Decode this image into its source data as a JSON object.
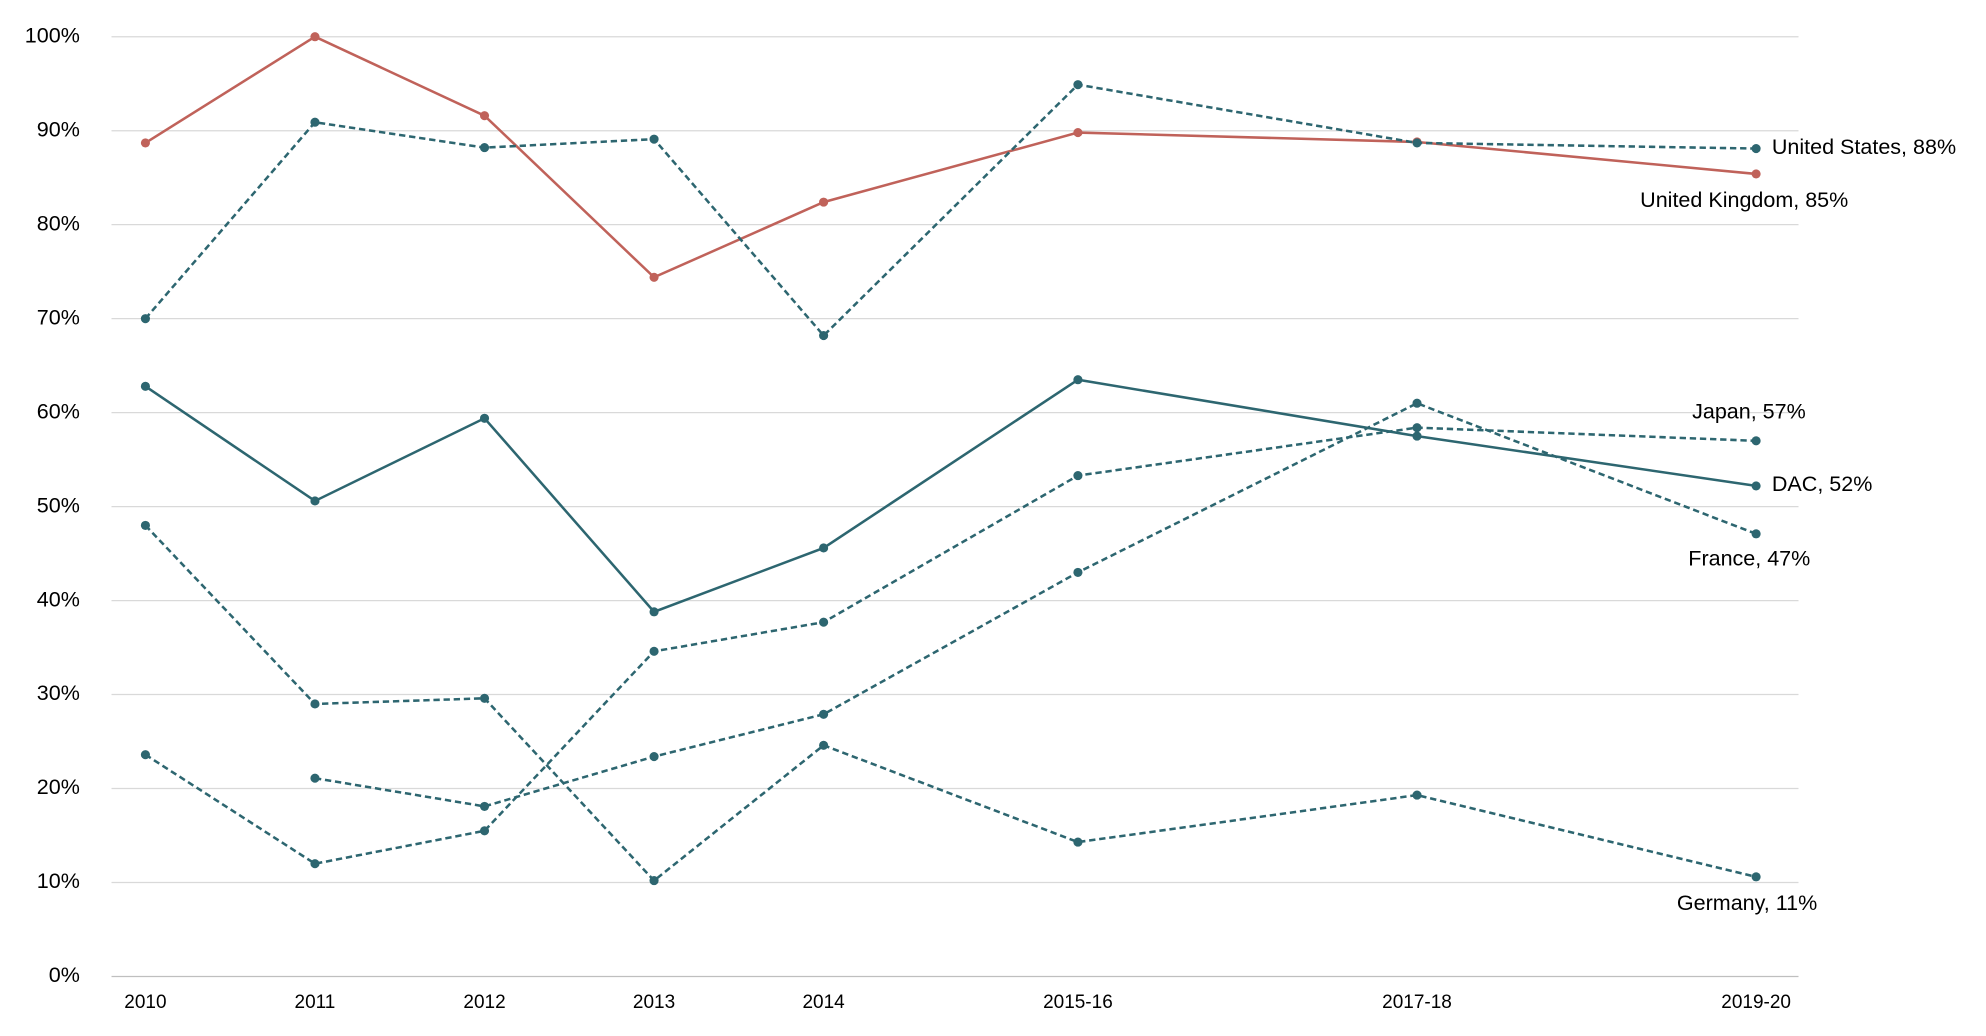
{
  "chart_data": {
    "type": "line",
    "x": [
      2010,
      2011,
      2012,
      2013,
      2014,
      2015.5,
      2017.5,
      2019.5
    ],
    "xlim": [
      2009.8,
      2019.75
    ],
    "xticks": [
      {
        "value": 2010,
        "label": "2010"
      },
      {
        "value": 2011,
        "label": "2011"
      },
      {
        "value": 2012,
        "label": "2012"
      },
      {
        "value": 2013,
        "label": "2013"
      },
      {
        "value": 2014,
        "label": "2014"
      },
      {
        "value": 2015.5,
        "label": "2015-16"
      },
      {
        "value": 2017.5,
        "label": "2017-18"
      },
      {
        "value": 2019.5,
        "label": "2019-20"
      }
    ],
    "ylim": [
      0,
      100
    ],
    "yticks": [
      {
        "value": 0,
        "label": "0%"
      },
      {
        "value": 10,
        "label": "10%"
      },
      {
        "value": 20,
        "label": "20%"
      },
      {
        "value": 30,
        "label": "30%"
      },
      {
        "value": 40,
        "label": "40%"
      },
      {
        "value": 50,
        "label": "50%"
      },
      {
        "value": 60,
        "label": "60%"
      },
      {
        "value": 70,
        "label": "70%"
      },
      {
        "value": 80,
        "label": "80%"
      },
      {
        "value": 90,
        "label": "90%"
      },
      {
        "value": 100,
        "label": "100%"
      }
    ],
    "grid": true,
    "series": [
      {
        "label": "United Kingdom, 85%",
        "color": "#c0625a",
        "dashed": false,
        "values": [
          88.7,
          100,
          91.6,
          74.4,
          82.4,
          89.8,
          88.8,
          85.4
        ]
      },
      {
        "label": "United States, 88%",
        "color": "#2d6670",
        "dashed": true,
        "values": [
          70,
          90.9,
          88.2,
          89.1,
          68.2,
          94.9,
          88.7,
          88.1
        ]
      },
      {
        "label": "DAC, 52%",
        "color": "#2d6670",
        "dashed": false,
        "values": [
          62.8,
          50.6,
          59.4,
          38.8,
          45.6,
          63.5,
          57.5,
          52.2
        ]
      },
      {
        "label": "Japan, 57%",
        "color": "#2d6670",
        "dashed": true,
        "values": [
          23.6,
          12,
          15.5,
          34.6,
          37.7,
          53.3,
          58.4,
          57
        ]
      },
      {
        "label": "France, 47%",
        "color": "#2d6670",
        "dashed": true,
        "values": [
          null,
          21.1,
          18.1,
          23.4,
          27.9,
          43,
          61,
          47.1
        ]
      },
      {
        "label": "Germany, 11%",
        "color": "#2d6670",
        "dashed": true,
        "values": [
          48,
          29,
          29.6,
          10.2,
          24.6,
          14.3,
          19.3,
          10.6
        ]
      }
    ]
  }
}
